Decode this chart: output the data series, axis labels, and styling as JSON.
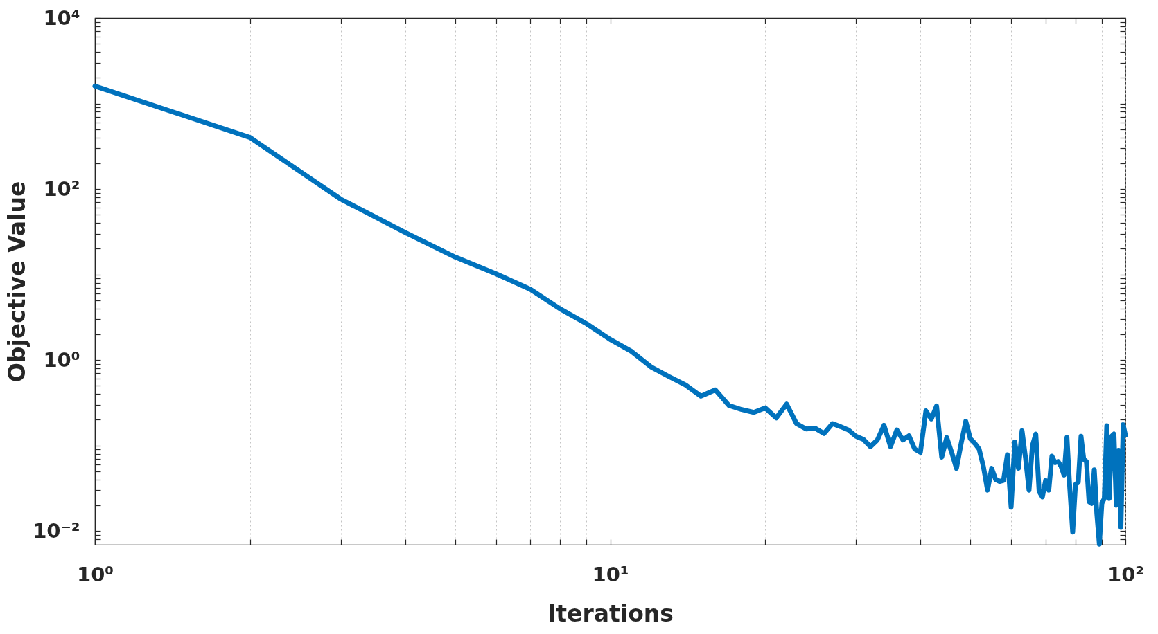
{
  "chart_data": {
    "type": "line",
    "xlabel": "Iterations",
    "ylabel": "Objective Value",
    "log": "xy",
    "grid": "x",
    "xlim": [
      1,
      100
    ],
    "ylim": [
      0.0069,
      10000
    ],
    "xticks": [
      {
        "value": 1,
        "label": "10⁰"
      },
      {
        "value": 2,
        "label": null
      },
      {
        "value": 3,
        "label": null
      },
      {
        "value": 4,
        "label": null
      },
      {
        "value": 5,
        "label": null
      },
      {
        "value": 6,
        "label": null
      },
      {
        "value": 7,
        "label": null
      },
      {
        "value": 8,
        "label": null
      },
      {
        "value": 9,
        "label": null
      },
      {
        "value": 10,
        "label": "10¹"
      },
      {
        "value": 20,
        "label": null
      },
      {
        "value": 30,
        "label": null
      },
      {
        "value": 40,
        "label": null
      },
      {
        "value": 50,
        "label": null
      },
      {
        "value": 60,
        "label": null
      },
      {
        "value": 70,
        "label": null
      },
      {
        "value": 80,
        "label": null
      },
      {
        "value": 90,
        "label": null
      },
      {
        "value": 100,
        "label": "10²"
      }
    ],
    "yticks": [
      {
        "value": 0.008,
        "label": null
      },
      {
        "value": 0.009,
        "label": null
      },
      {
        "value": 0.01,
        "label": "10⁻²"
      },
      {
        "value": 0.02,
        "label": null
      },
      {
        "value": 0.03,
        "label": null
      },
      {
        "value": 0.04,
        "label": null
      },
      {
        "value": 0.05,
        "label": null
      },
      {
        "value": 0.06,
        "label": null
      },
      {
        "value": 0.07,
        "label": null
      },
      {
        "value": 0.08,
        "label": null
      },
      {
        "value": 0.09,
        "label": null
      },
      {
        "value": 0.1,
        "label": null
      },
      {
        "value": 0.2,
        "label": null
      },
      {
        "value": 0.3,
        "label": null
      },
      {
        "value": 0.4,
        "label": null
      },
      {
        "value": 0.5,
        "label": null
      },
      {
        "value": 0.6,
        "label": null
      },
      {
        "value": 0.7,
        "label": null
      },
      {
        "value": 0.8,
        "label": null
      },
      {
        "value": 0.9,
        "label": null
      },
      {
        "value": 1,
        "label": "10⁰"
      },
      {
        "value": 2,
        "label": null
      },
      {
        "value": 3,
        "label": null
      },
      {
        "value": 4,
        "label": null
      },
      {
        "value": 5,
        "label": null
      },
      {
        "value": 6,
        "label": null
      },
      {
        "value": 7,
        "label": null
      },
      {
        "value": 8,
        "label": null
      },
      {
        "value": 9,
        "label": null
      },
      {
        "value": 10,
        "label": null
      },
      {
        "value": 20,
        "label": null
      },
      {
        "value": 30,
        "label": null
      },
      {
        "value": 40,
        "label": null
      },
      {
        "value": 50,
        "label": null
      },
      {
        "value": 60,
        "label": null
      },
      {
        "value": 70,
        "label": null
      },
      {
        "value": 80,
        "label": null
      },
      {
        "value": 90,
        "label": null
      },
      {
        "value": 100,
        "label": "10²"
      },
      {
        "value": 200,
        "label": null
      },
      {
        "value": 300,
        "label": null
      },
      {
        "value": 400,
        "label": null
      },
      {
        "value": 500,
        "label": null
      },
      {
        "value": 600,
        "label": null
      },
      {
        "value": 700,
        "label": null
      },
      {
        "value": 800,
        "label": null
      },
      {
        "value": 900,
        "label": null
      },
      {
        "value": 1000,
        "label": null
      },
      {
        "value": 2000,
        "label": null
      },
      {
        "value": 3000,
        "label": null
      },
      {
        "value": 4000,
        "label": null
      },
      {
        "value": 5000,
        "label": null
      },
      {
        "value": 6000,
        "label": null
      },
      {
        "value": 7000,
        "label": null
      },
      {
        "value": 8000,
        "label": null
      },
      {
        "value": 9000,
        "label": null
      },
      {
        "value": 10000,
        "label": "10⁴"
      }
    ],
    "x": [
      1,
      2,
      3,
      4,
      5,
      6,
      7,
      8,
      9,
      10,
      11,
      12,
      13,
      14,
      15,
      16,
      17,
      18,
      19,
      20,
      21,
      22,
      23,
      24,
      25,
      26,
      27,
      28,
      29,
      30,
      31,
      32,
      33,
      34,
      35,
      36,
      37,
      38,
      39,
      40,
      41,
      42,
      43,
      44,
      45,
      46,
      47,
      48,
      49,
      50,
      51,
      52,
      53,
      54,
      55,
      56,
      57,
      58,
      59,
      60,
      61,
      62,
      63,
      64,
      65,
      66,
      67,
      68,
      69,
      70,
      71,
      72,
      73,
      74,
      75,
      76,
      77,
      78,
      79,
      80,
      81,
      82,
      83,
      84,
      85,
      86,
      87,
      88,
      89,
      90,
      91,
      92,
      93,
      94,
      95,
      96,
      97,
      98,
      99,
      100
    ],
    "series": [
      {
        "color": "#0072bd",
        "values": [
          1600,
          400,
          76,
          31,
          16,
          10.2,
          6.7,
          3.95,
          2.65,
          1.74,
          1.26,
          0.83,
          0.64,
          0.51,
          0.377,
          0.447,
          0.294,
          0.263,
          0.244,
          0.275,
          0.21,
          0.305,
          0.18,
          0.156,
          0.159,
          0.138,
          0.18,
          0.166,
          0.152,
          0.128,
          0.118,
          0.097,
          0.116,
          0.172,
          0.097,
          0.152,
          0.116,
          0.13,
          0.091,
          0.083,
          0.254,
          0.204,
          0.29,
          0.073,
          0.124,
          0.083,
          0.054,
          0.106,
          0.192,
          0.12,
          0.106,
          0.091,
          0.057,
          0.03,
          0.054,
          0.04,
          0.038,
          0.039,
          0.078,
          0.019,
          0.11,
          0.054,
          0.149,
          0.071,
          0.03,
          0.1,
          0.136,
          0.029,
          0.025,
          0.039,
          0.03,
          0.075,
          0.063,
          0.065,
          0.057,
          0.045,
          0.124,
          0.031,
          0.0097,
          0.035,
          0.037,
          0.128,
          0.069,
          0.065,
          0.022,
          0.021,
          0.052,
          0.016,
          0.007,
          0.021,
          0.024,
          0.17,
          0.024,
          0.128,
          0.136,
          0.02,
          0.088,
          0.011,
          0.175,
          0.132
        ]
      }
    ]
  }
}
